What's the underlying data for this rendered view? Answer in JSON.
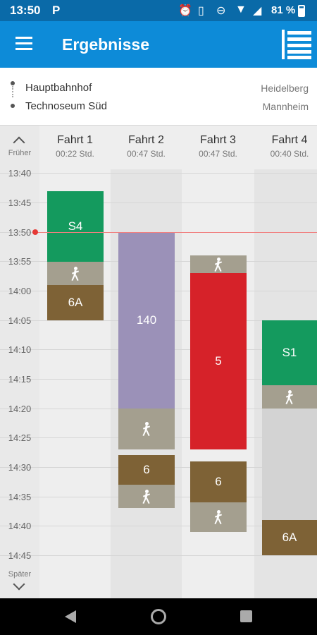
{
  "status": {
    "time": "13:50",
    "p_icon": "P",
    "battery": "81 %"
  },
  "appbar": {
    "title": "Ergebnisse"
  },
  "route": {
    "from_stop": "Hauptbahnhof",
    "from_city": "Heidelberg",
    "to_stop": "Technoseum Süd",
    "to_city": "Mannheim"
  },
  "nav": {
    "earlier": "Früher",
    "later": "Später"
  },
  "times": [
    "13:40",
    "13:45",
    "13:50",
    "13:55",
    "14:00",
    "14:05",
    "14:10",
    "14:15",
    "14:20",
    "14:25",
    "14:30",
    "14:35",
    "14:40",
    "14:45"
  ],
  "trips": [
    {
      "name": "Fahrt 1",
      "duration": "00:22 Std."
    },
    {
      "name": "Fahrt 2",
      "duration": "00:47 Std."
    },
    {
      "name": "Fahrt 3",
      "duration": "00:47 Std."
    },
    {
      "name": "Fahrt 4",
      "duration": "00:40 Std."
    }
  ],
  "segments": {
    "t1_s4": "S4",
    "t1_6a": "6A",
    "t2_140": "140",
    "t2_6": "6",
    "t3_5": "5",
    "t3_6": "6",
    "t4_s1": "S1",
    "t4_6a": "6A"
  },
  "colors": {
    "s_bahn_green": "#149a5e",
    "bus_purple": "#9b91b8",
    "tram_red": "#d62229",
    "tram_brown": "#7e6236",
    "walk_gray": "#a49f8f",
    "header_blue": "#0d8bd8"
  }
}
